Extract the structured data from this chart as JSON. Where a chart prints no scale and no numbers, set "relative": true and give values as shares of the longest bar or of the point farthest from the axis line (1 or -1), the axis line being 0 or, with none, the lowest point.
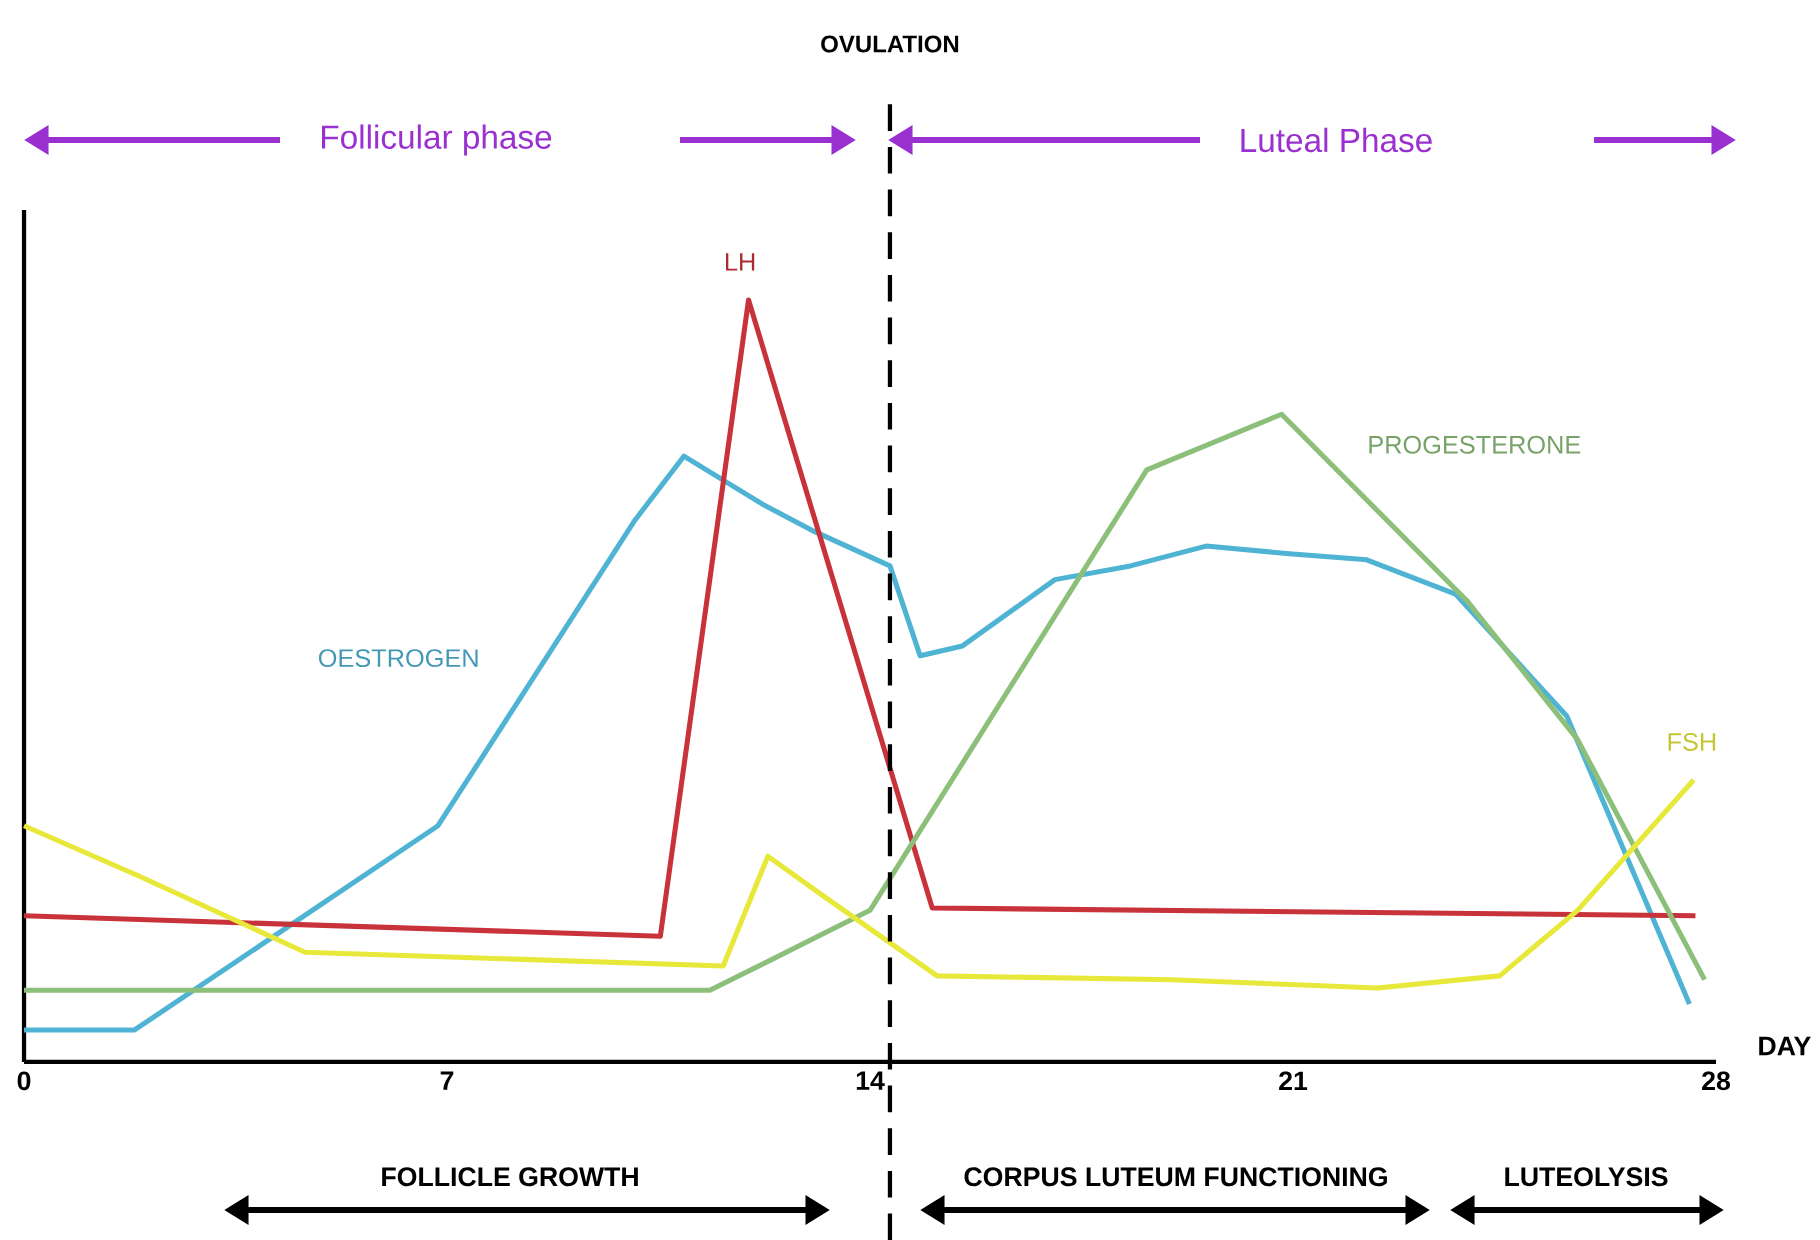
{
  "chart_data": {
    "type": "line",
    "relative": true,
    "xlabel": "DAY",
    "xlim": [
      0,
      28
    ],
    "xticks": [
      0,
      7,
      14,
      21,
      28
    ],
    "line_style": "solid",
    "series": [
      {
        "name": "OESTROGEN",
        "color": "#4fb3d3",
        "x": [
          0,
          1.83,
          6.85,
          10.11,
          10.92,
          12.22,
          13.03,
          14.33,
          14.83,
          15.53,
          17.06,
          18.31,
          19.56,
          20.94,
          22.22,
          23.69,
          25.53,
          27.56
        ],
        "values": [
          0.042,
          0.042,
          0.31,
          0.711,
          0.795,
          0.732,
          0.698,
          0.651,
          0.533,
          0.546,
          0.633,
          0.651,
          0.677,
          0.667,
          0.659,
          0.614,
          0.454,
          0.076
        ]
      },
      {
        "name": "LH",
        "color": "#c8323a",
        "x": [
          0,
          10.53,
          11.99,
          15.03,
          27.66
        ],
        "values": [
          0.192,
          0.165,
          1,
          0.202,
          0.192
        ]
      },
      {
        "name": "PROGESTERONE",
        "color": "#8cc07a",
        "x": [
          0,
          11.35,
          14.0,
          18.58,
          20.81,
          23.87,
          25.71,
          27.81
        ],
        "values": [
          0.094,
          0.094,
          0.199,
          0.777,
          0.85,
          0.606,
          0.423,
          0.108
        ]
      },
      {
        "name": "FSH",
        "color": "#e8e83a",
        "x": [
          0,
          1.9,
          4.65,
          11.57,
          12.31,
          13.19,
          15.11,
          19.0,
          22.4,
          24.42,
          25.71,
          27.63
        ],
        "values": [
          0.31,
          0.244,
          0.144,
          0.126,
          0.27,
          0.22,
          0.113,
          0.108,
          0.097,
          0.113,
          0.199,
          0.37
        ]
      }
    ],
    "ref_lines": [
      {
        "axis": "x",
        "value": 14.33,
        "label": "OVULATION",
        "line_style": "dashed"
      }
    ],
    "annotations": [
      "Follicular phase",
      "Luteal Phase",
      "FOLLICLE GROWTH",
      "CORPUS LUTEUM FUNCTIONING",
      "LUTEOLYSIS"
    ]
  }
}
